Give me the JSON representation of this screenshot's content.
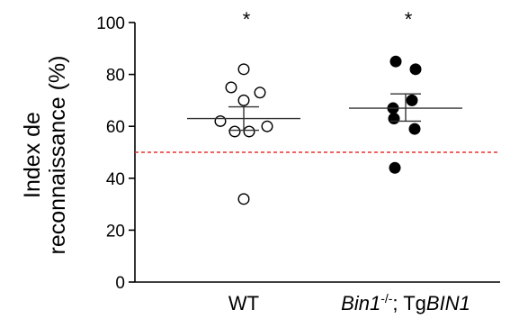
{
  "chart_data": {
    "type": "scatter",
    "title": "",
    "ylabel_line1": "Index de",
    "ylabel_line2": "reconnaissance (%)",
    "ylim": [
      0,
      100
    ],
    "yticks": [
      "0",
      "20",
      "40",
      "60",
      "80",
      "100"
    ],
    "reference_line": {
      "y": 50,
      "style": "dashed",
      "color": "#e8322e"
    },
    "groups": [
      {
        "label_parts": [
          {
            "text": "WT",
            "italic": false
          }
        ],
        "marker": "open-circle",
        "points": [
          82,
          75,
          73,
          70,
          62,
          60,
          58,
          58,
          32
        ],
        "mean": 63,
        "sem_upper": 67.5,
        "sem_lower": 58.5,
        "annotation": "*"
      },
      {
        "label_parts": [
          {
            "text": "Bin1",
            "italic": true
          },
          {
            "text": "-/-",
            "italic": false,
            "superscript": true
          },
          {
            "text": "; Tg",
            "italic": false
          },
          {
            "text": "BIN1",
            "italic": true
          }
        ],
        "marker": "filled-circle",
        "points": [
          85,
          82,
          70,
          67,
          63,
          59,
          44
        ],
        "mean": 67,
        "sem_upper": 72.5,
        "sem_lower": 62,
        "annotation": "*"
      }
    ]
  }
}
